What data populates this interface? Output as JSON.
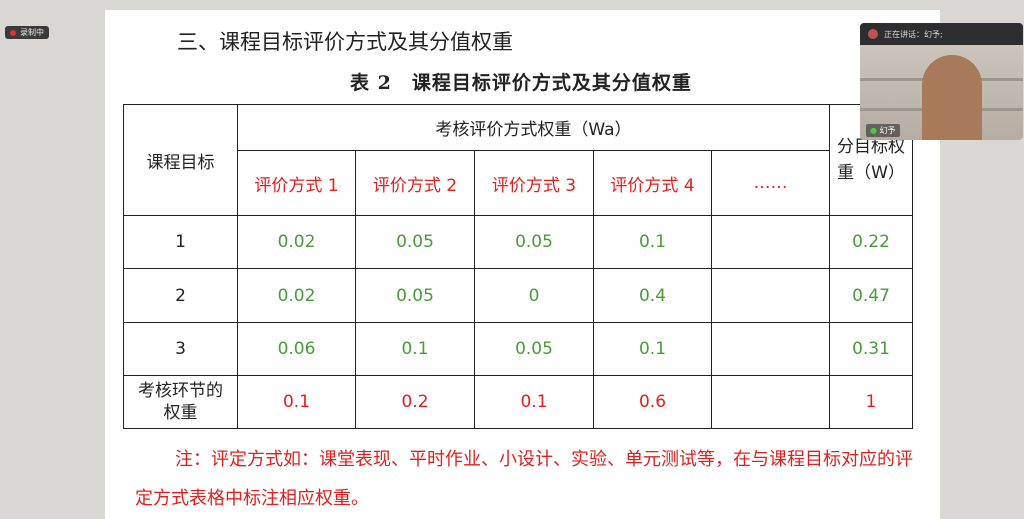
{
  "recording": {
    "label": "录制中"
  },
  "video": {
    "speaking": "正在讲话：幻予;",
    "name": "幻予"
  },
  "slide": {
    "heading": "三、课程目标评价方式及其分值权重",
    "caption": "表 2　课程目标评价方式及其分值权重",
    "table": {
      "col_goal": "课程目标",
      "group": "考核评价方式权重（Wa）",
      "col_w": "分目标权重（W）",
      "methods": [
        "评价方式 1",
        "评价方式 2",
        "评价方式 3",
        "评价方式 4",
        "……"
      ],
      "rows": [
        {
          "goal": "1",
          "values": [
            "0.02",
            "0.05",
            "0.05",
            "0.1",
            ""
          ],
          "w": "0.22"
        },
        {
          "goal": "2",
          "values": [
            "0.02",
            "0.05",
            "0",
            "0.4",
            ""
          ],
          "w": "0.47"
        },
        {
          "goal": "3",
          "values": [
            "0.06",
            "0.1",
            "0.05",
            "0.1",
            ""
          ],
          "w": "0.31"
        }
      ],
      "weight_row": {
        "label": "考核环节的权重",
        "values": [
          "0.1",
          "0.2",
          "0.1",
          "0.6",
          ""
        ],
        "w": "1"
      }
    },
    "note": "注：评定方式如：课堂表现、平时作业、小设计、实验、单元测试等，在与课程目标对应的评定方式表格中标注相应权重。"
  }
}
